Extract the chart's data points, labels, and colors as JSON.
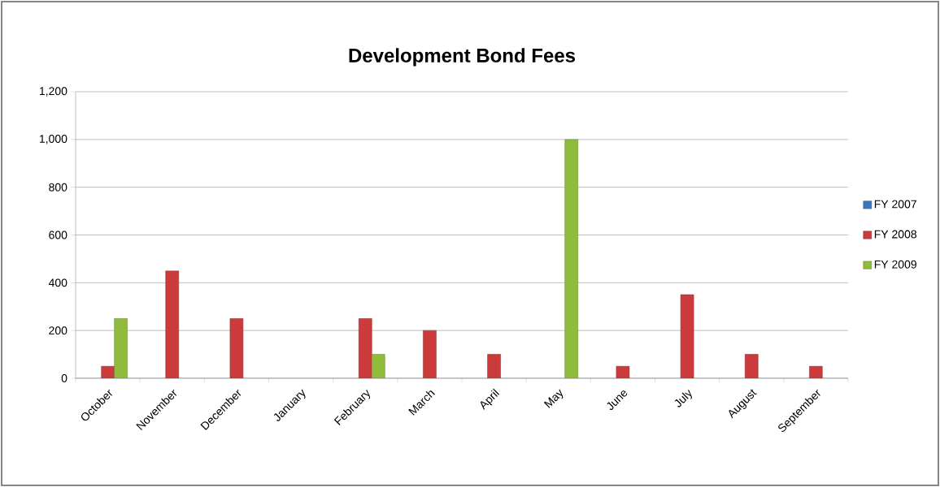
{
  "chart_data": {
    "type": "bar",
    "title": "Development Bond Fees",
    "categories": [
      "October",
      "November",
      "December",
      "January",
      "February",
      "March",
      "April",
      "May",
      "June",
      "July",
      "August",
      "September"
    ],
    "series": [
      {
        "name": "FY 2007",
        "color": "#3d75bd",
        "values": [
          null,
          null,
          null,
          null,
          null,
          null,
          null,
          null,
          null,
          null,
          null,
          null
        ]
      },
      {
        "name": "FY 2008",
        "color": "#cc3b3b",
        "values": [
          50,
          450,
          250,
          null,
          250,
          200,
          100,
          null,
          50,
          350,
          100,
          50
        ]
      },
      {
        "name": "FY 2009",
        "color": "#8fbc3c",
        "values": [
          250,
          null,
          null,
          null,
          100,
          null,
          null,
          1000,
          null,
          null,
          null,
          null
        ]
      }
    ],
    "ylim": [
      0,
      1200
    ],
    "yticks": [
      0,
      200,
      400,
      600,
      800,
      {
        "value": 1000,
        "label": "1,000"
      },
      {
        "value": 1200,
        "label": "1,200"
      }
    ],
    "grid": "y",
    "legend": "right"
  }
}
